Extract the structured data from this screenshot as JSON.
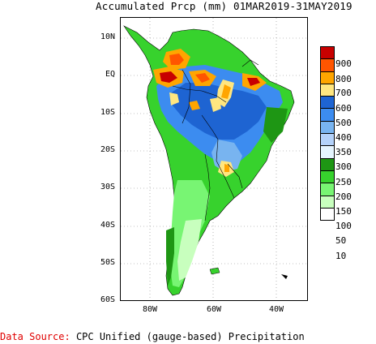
{
  "title": "Accumulated Prcp (mm) 01MAR2019-31MAY2019",
  "y_axis_labels": [
    "10N",
    "EQ",
    "10S",
    "20S",
    "30S",
    "40S",
    "50S",
    "60S"
  ],
  "x_axis_labels": [
    "80W",
    "60W",
    "40W"
  ],
  "legend": {
    "labels": [
      "900",
      "800",
      "700",
      "600",
      "500",
      "400",
      "350",
      "300",
      "250",
      "200",
      "150",
      "100",
      "50",
      "10"
    ],
    "colors": [
      "#c80000",
      "#ff5500",
      "#ffa500",
      "#ffe680",
      "#1e64d2",
      "#3c8cf0",
      "#78b4f0",
      "#b4d2fa",
      "#e6f5ff",
      "#1e9614",
      "#37d22d",
      "#78f573",
      "#c8ffbe",
      "#ffffff"
    ]
  },
  "source": {
    "label": "Data Source:",
    "text": "CPC Unified (gauge-based) Precipitation"
  }
}
